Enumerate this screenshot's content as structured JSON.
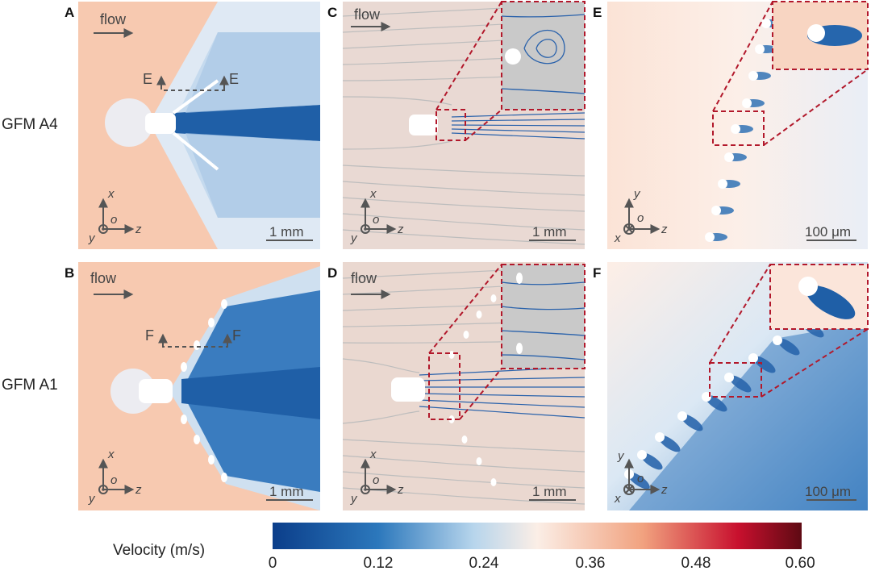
{
  "figure": {
    "panels": [
      {
        "id": "A",
        "letter": "A",
        "flow_label": "flow",
        "scale_bar": "1 mm",
        "section_left": "E",
        "section_right": "E",
        "axis_in": "y",
        "axis_up": "x",
        "axis_right": "z",
        "origin": "o"
      },
      {
        "id": "B",
        "letter": "B",
        "flow_label": "flow",
        "scale_bar": "1 mm",
        "section_left": "F",
        "section_right": "F",
        "axis_in": "y",
        "axis_up": "x",
        "axis_right": "z",
        "origin": "o"
      },
      {
        "id": "C",
        "letter": "C",
        "flow_label": "flow",
        "scale_bar": "1 mm",
        "axis_in": "y",
        "axis_up": "x",
        "axis_right": "z",
        "origin": "o"
      },
      {
        "id": "D",
        "letter": "D",
        "flow_label": "flow",
        "scale_bar": "1 mm",
        "axis_in": "y",
        "axis_up": "x",
        "axis_right": "z",
        "origin": "o"
      },
      {
        "id": "E",
        "letter": "E",
        "scale_bar": "100 μm",
        "axis_in": "x",
        "axis_up": "y",
        "axis_right": "z",
        "origin": "o"
      },
      {
        "id": "F",
        "letter": "F",
        "scale_bar": "100 μm",
        "axis_in": "x",
        "axis_up": "y",
        "axis_right": "z",
        "origin": "o"
      }
    ],
    "row_labels": [
      "GFM A4",
      "GFM A1"
    ],
    "colorbar": {
      "label": "Velocity (m/s)",
      "ticks": [
        "0",
        "0.12",
        "0.24",
        "0.36",
        "0.48",
        "0.60"
      ],
      "min": 0,
      "max": 0.6,
      "colors": [
        "#0b3e8a",
        "#2c78bc",
        "#b7d5ec",
        "#fbeee6",
        "#f1a27f",
        "#c8102e",
        "#5e0a13"
      ]
    }
  }
}
